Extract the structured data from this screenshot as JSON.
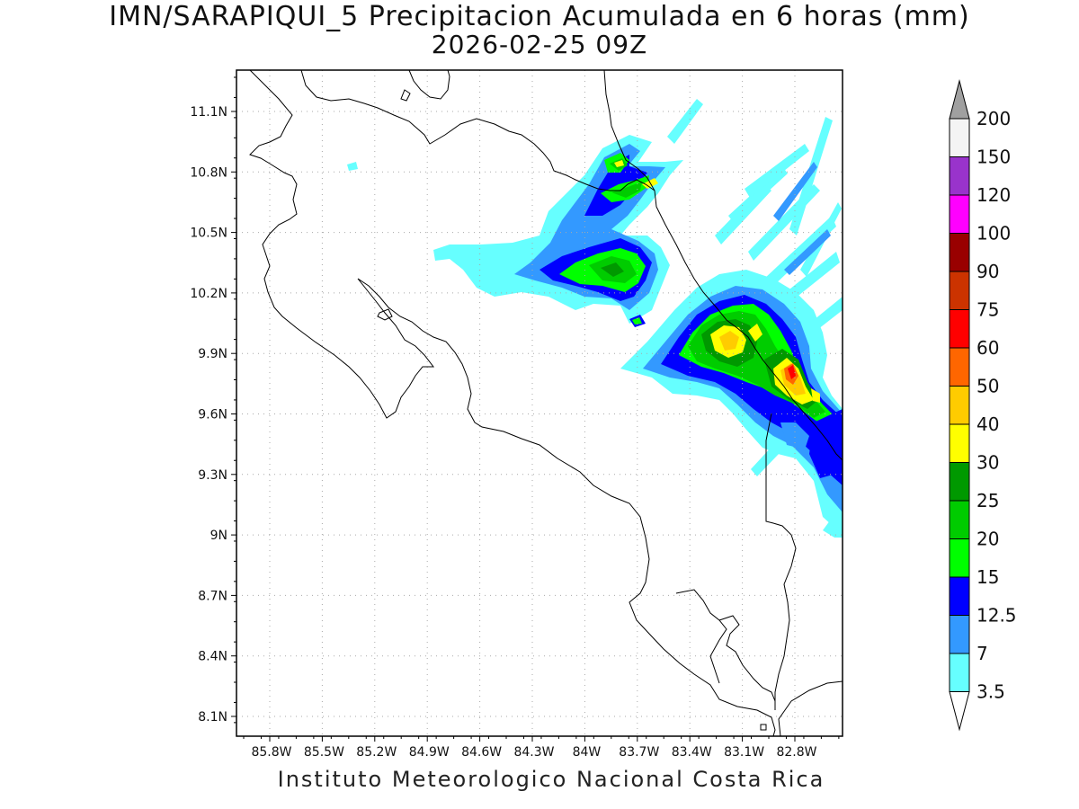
{
  "title": {
    "line1": "IMN/SARAPIQUI_5 Precipitacion Acumulada en 6 horas (mm)",
    "line2": "2026-02-25 09Z"
  },
  "footer": "Instituto Meteorologico Nacional Costa Rica",
  "map": {
    "lat_ticks": [
      "11.1N",
      "10.8N",
      "10.5N",
      "10.2N",
      "9.9N",
      "9.6N",
      "9.3N",
      "9N",
      "8.7N",
      "8.4N",
      "8.1N"
    ],
    "lon_ticks": [
      "85.8W",
      "85.5W",
      "85.2W",
      "84.9W",
      "84.6W",
      "84.3W",
      "84W",
      "83.7W",
      "83.4W",
      "83.1W",
      "82.8W"
    ],
    "gridlines": "dotted",
    "colors": {
      "lt35": "#ffffff",
      "c35": "#66ffff",
      "c7": "#3399ff",
      "c125": "#0000ff",
      "c15": "#00ff00",
      "c20": "#00cc00",
      "c25": "#009900",
      "c30": "#ffff00",
      "c40": "#ffcc00",
      "c50": "#ff6600",
      "c60": "#ff0000",
      "c75": "#cc3300",
      "c90": "#990000"
    }
  },
  "colorbar": {
    "labels": [
      "200",
      "150",
      "120",
      "100",
      "90",
      "75",
      "60",
      "50",
      "40",
      "30",
      "25",
      "20",
      "15",
      "12.5",
      "7",
      "3.5"
    ],
    "colors": [
      "#f4f4f4",
      "#9933cc",
      "#ff00ff",
      "#990000",
      "#cc3300",
      "#ff0000",
      "#ff6600",
      "#ffcc00",
      "#ffff00",
      "#009900",
      "#00cc00",
      "#00ff00",
      "#0000ff",
      "#3399ff",
      "#66ffff"
    ],
    "over_color": "#a0a0a0",
    "under_color": "#ffffff"
  }
}
